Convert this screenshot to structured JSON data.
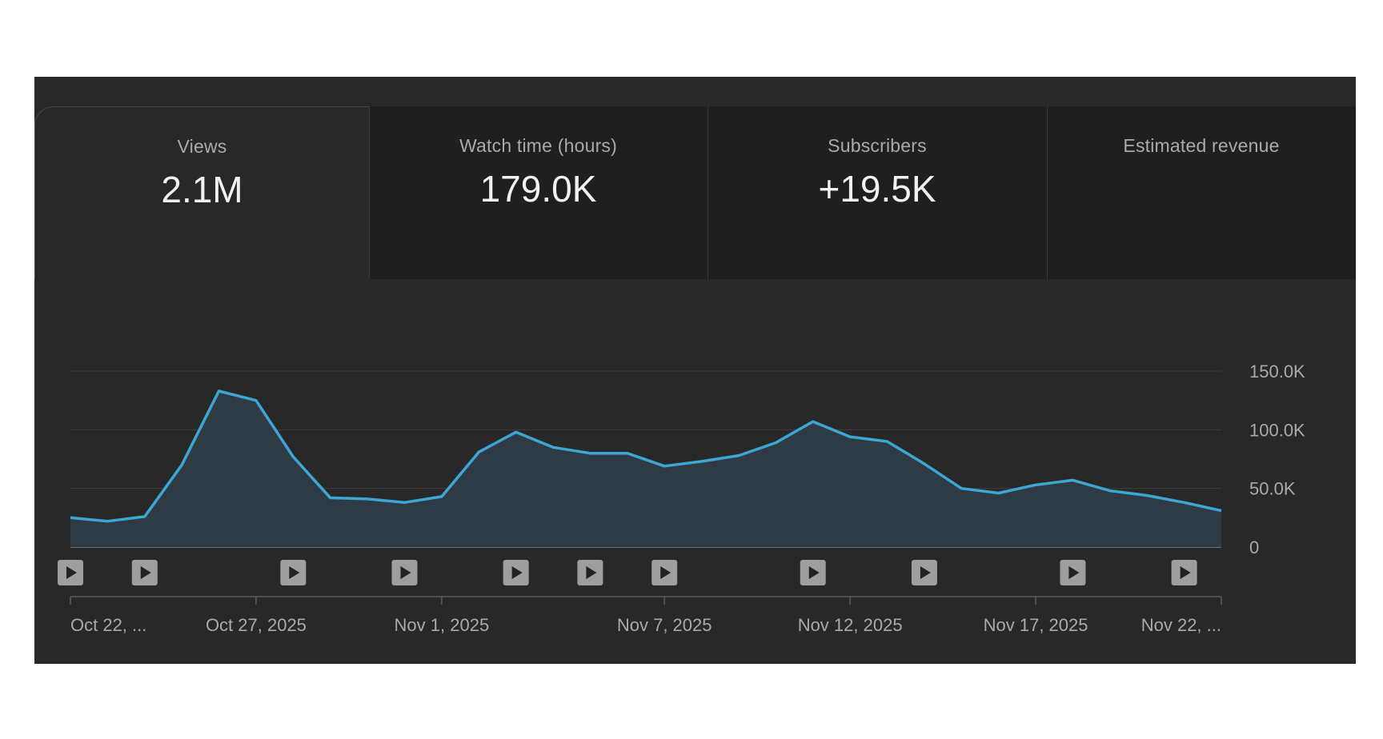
{
  "metrics": [
    {
      "label": "Views",
      "value": "2.1M",
      "selected": true
    },
    {
      "label": "Watch time (hours)",
      "value": "179.0K",
      "selected": false
    },
    {
      "label": "Subscribers",
      "value": "+19.5K",
      "selected": false
    },
    {
      "label": "Estimated revenue",
      "value": "",
      "selected": false
    }
  ],
  "colors": {
    "line": "#3ea6d4",
    "area": "#2e3b45",
    "grid": "#3e3e3e",
    "baseline": "#8a8a8a",
    "tick_text": "#aaaaaa",
    "marker_bg": "#9e9e9e",
    "marker_icon": "#222222"
  },
  "chart_data": {
    "type": "area",
    "title": "",
    "xlabel": "",
    "ylabel": "",
    "ylim": [
      0,
      150000
    ],
    "y_ticks": [
      0,
      50000,
      100000,
      150000
    ],
    "y_tick_labels": [
      "0",
      "50.0K",
      "100.0K",
      "150.0K"
    ],
    "y_axis_position": "right",
    "grid": true,
    "x": [
      "2025-10-22",
      "2025-10-23",
      "2025-10-24",
      "2025-10-25",
      "2025-10-26",
      "2025-10-27",
      "2025-10-28",
      "2025-10-29",
      "2025-10-30",
      "2025-10-31",
      "2025-11-01",
      "2025-11-02",
      "2025-11-03",
      "2025-11-04",
      "2025-11-05",
      "2025-11-06",
      "2025-11-07",
      "2025-11-08",
      "2025-11-09",
      "2025-11-10",
      "2025-11-11",
      "2025-11-12",
      "2025-11-13",
      "2025-11-14",
      "2025-11-15",
      "2025-11-16",
      "2025-11-17",
      "2025-11-18",
      "2025-11-19",
      "2025-11-20",
      "2025-11-21",
      "2025-11-22"
    ],
    "series": [
      {
        "values": [
          25000,
          22000,
          26000,
          70000,
          133000,
          125000,
          77000,
          42000,
          41000,
          38000,
          43000,
          81000,
          98000,
          85000,
          80000,
          80000,
          69000,
          73000,
          78000,
          89000,
          107000,
          94000,
          90000,
          71000,
          50000,
          46000,
          53000,
          57000,
          48000,
          44000,
          38000,
          31000
        ]
      }
    ],
    "x_tick_dates": [
      "2025-10-22",
      "2025-10-27",
      "2025-11-01",
      "2025-11-07",
      "2025-11-12",
      "2025-11-17",
      "2025-11-22"
    ],
    "x_tick_labels": [
      "Oct 22, ...",
      "Oct 27, 2025",
      "Nov 1, 2025",
      "Nov 7, 2025",
      "Nov 12, 2025",
      "Nov 17, 2025",
      "Nov 22, ..."
    ],
    "video_markers": [
      "2025-10-22",
      "2025-10-24",
      "2025-10-28",
      "2025-10-31",
      "2025-11-03",
      "2025-11-05",
      "2025-11-07",
      "2025-11-11",
      "2025-11-14",
      "2025-11-18",
      "2025-11-21"
    ]
  }
}
